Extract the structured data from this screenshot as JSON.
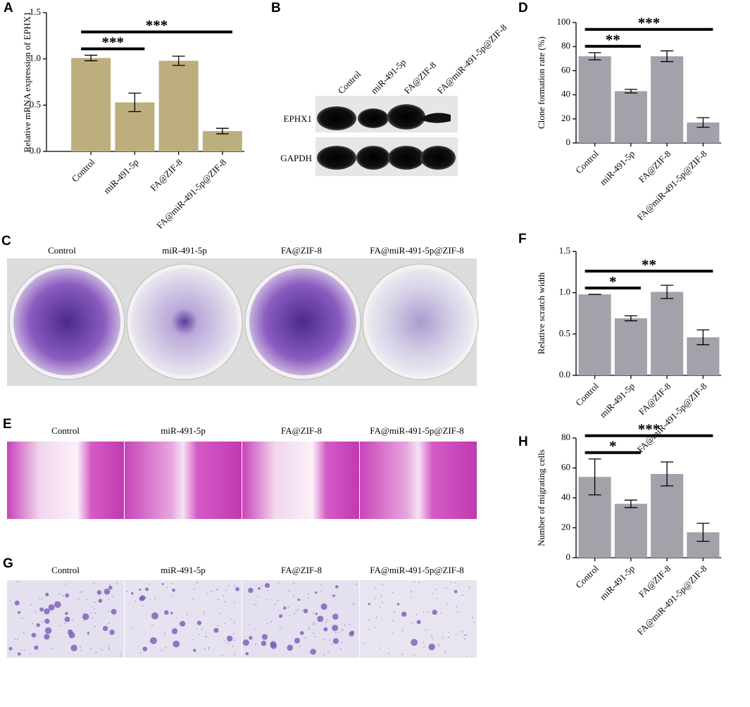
{
  "chart_data": [
    {
      "type": "bar",
      "panel": "A",
      "ylabel": "Relative mRNA expression of EPHX1",
      "categories": [
        "Control",
        "miR-491-5p",
        "FA@ZIF-8",
        "FA@miR-491-5p@ZIF-8"
      ],
      "values": [
        1.01,
        0.53,
        0.98,
        0.22
      ],
      "errors": [
        0.03,
        0.1,
        0.05,
        0.03
      ],
      "color": "#bdae7e",
      "ylim": [
        0,
        1.5
      ],
      "yticks": [
        {
          "value": 0,
          "label": "0.0"
        },
        0.5,
        {
          "value": 1,
          "label": "1.0"
        },
        1.5
      ],
      "significance": [
        {
          "label": "***",
          "pair": [
            0,
            1
          ]
        },
        {
          "label": "***",
          "pair": [
            0,
            3
          ]
        }
      ]
    },
    {
      "type": "bar",
      "panel": "D",
      "ylabel": "Clone formation rate (%)",
      "categories": [
        "Control",
        "miR-491-5p",
        "FA@ZIF-8",
        "FA@miR-491-5p@ZIF-8"
      ],
      "values": [
        72,
        43,
        72,
        17
      ],
      "errors": [
        3,
        1.5,
        4.5,
        4
      ],
      "color": "#a2a2aa",
      "ylim": [
        0,
        100
      ],
      "yticks": [
        0,
        20,
        40,
        60,
        80,
        100
      ],
      "significance": [
        {
          "label": "**",
          "pair": [
            0,
            1
          ]
        },
        {
          "label": "***",
          "pair": [
            0,
            3
          ]
        }
      ]
    },
    {
      "type": "bar",
      "panel": "F",
      "ylabel": "Relative scratch width",
      "categories": [
        "Control",
        "miR-491-5p",
        "FA@ZIF-8",
        "FA@miR-491-5p@ZIF-8"
      ],
      "values": [
        0.98,
        0.69,
        1.01,
        0.46
      ],
      "errors": [
        0,
        0.03,
        0.08,
        0.09
      ],
      "color": "#a2a2aa",
      "ylim": [
        0,
        1.5
      ],
      "yticks": [
        {
          "value": 0,
          "label": "0.0"
        },
        0.5,
        {
          "value": 1,
          "label": "1.0"
        },
        1.5
      ],
      "significance": [
        {
          "label": "*",
          "pair": [
            0,
            1
          ]
        },
        {
          "label": "**",
          "pair": [
            0,
            3
          ]
        }
      ]
    },
    {
      "type": "bar",
      "panel": "H",
      "ylabel": "Number of migrating cells",
      "categories": [
        "Control",
        "miR-491-5p",
        "FA@ZIF-8",
        "FA@miR-491-5p@ZIF-8"
      ],
      "values": [
        54,
        36,
        56,
        17
      ],
      "errors": [
        12,
        2.5,
        8,
        6
      ],
      "color": "#a2a2aa",
      "ylim": [
        0,
        80
      ],
      "yticks": [
        0,
        20,
        40,
        60,
        80
      ],
      "significance": [
        {
          "label": "*",
          "pair": [
            0,
            1
          ]
        },
        {
          "label": "***",
          "pair": [
            0,
            3
          ]
        }
      ]
    }
  ],
  "western_blot": {
    "panel": "B",
    "lanes": [
      "Control",
      "miR-491-5p",
      "FA@ZIF-8",
      "FA@miR-491-5p@ZIF-8"
    ],
    "bands": [
      "EPHX1",
      "GAPDH"
    ]
  },
  "colony_images": {
    "panel": "C",
    "columns": [
      "Control",
      "miR-491-5p",
      "FA@ZIF-8",
      "FA@miR-491-5p@ZIF-8"
    ]
  },
  "scratch_images": {
    "panel": "E",
    "columns": [
      "Control",
      "miR-491-5p",
      "FA@ZIF-8",
      "FA@miR-491-5p@ZIF-8"
    ]
  },
  "transwell_images": {
    "panel": "G",
    "columns": [
      "Control",
      "miR-491-5p",
      "FA@ZIF-8",
      "FA@miR-491-5p@ZIF-8"
    ]
  }
}
